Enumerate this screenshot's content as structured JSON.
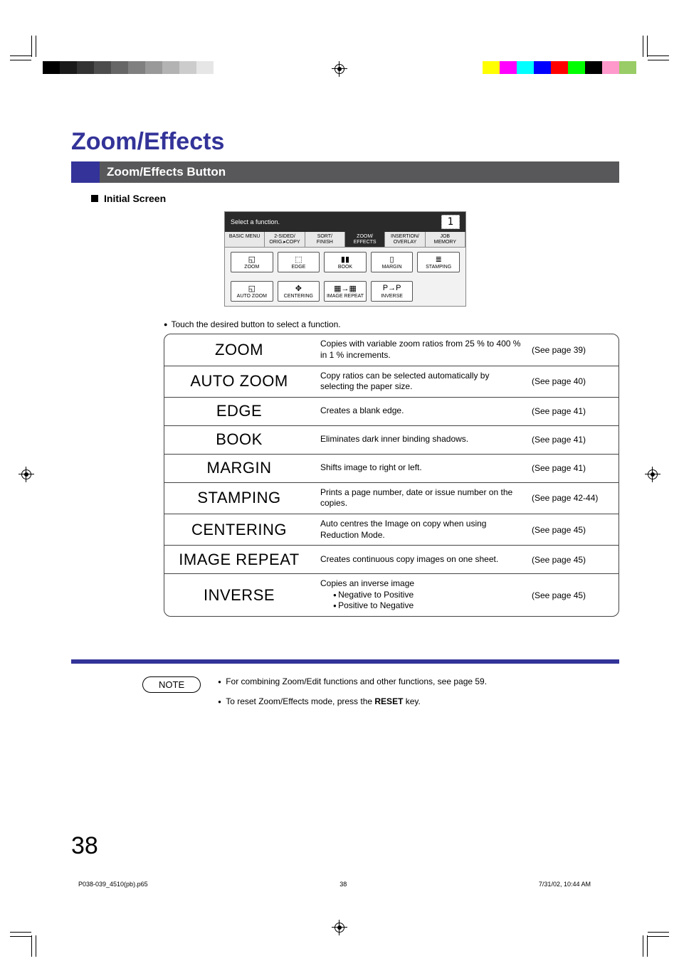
{
  "print_marks": {
    "grayscale_bar": [
      "#000000",
      "#1a1a1a",
      "#333333",
      "#4d4d4d",
      "#666666",
      "#808080",
      "#999999",
      "#b3b3b3",
      "#cccccc",
      "#e6e6e6",
      "#ffffff"
    ],
    "color_bar": [
      "#ffff00",
      "#ff00ff",
      "#00ffff",
      "#0000ff",
      "#ff0000",
      "#00ff00",
      "#000000",
      "#ff99cc",
      "#99cc66"
    ]
  },
  "title": "Zoom/Effects",
  "subtitle": "Zoom/Effects Button",
  "section_label": "Initial Screen",
  "touchscreen": {
    "prompt": "Select a function.",
    "count": "1",
    "tabs": [
      "BASIC MENU",
      "2-SIDED/\nORIG.▸COPY",
      "SORT/\nFINISH",
      "ZOOM/\nEFFECTS",
      "INSERTION/\nOVERLAY",
      "JOB\nMEMORY"
    ],
    "active_tab_index": 3,
    "row1": [
      {
        "icon": "◱",
        "label": "ZOOM"
      },
      {
        "icon": "⬚",
        "label": "EDGE"
      },
      {
        "icon": "▮▮",
        "label": "BOOK"
      },
      {
        "icon": "▯",
        "label": "MARGIN"
      },
      {
        "icon": "≣",
        "label": "STAMPING"
      }
    ],
    "row2": [
      {
        "icon": "◱",
        "label": "AUTO ZOOM"
      },
      {
        "icon": "✥",
        "label": "CENTERING"
      },
      {
        "icon": "▦→▦",
        "label": "IMAGE REPEAT"
      },
      {
        "icon": "P→P",
        "label": "INVERSE"
      },
      {
        "icon": "",
        "label": ""
      }
    ]
  },
  "touch_note": "Touch the desired button to select a function.",
  "features": [
    {
      "name": "ZOOM",
      "desc": "Copies with variable zoom ratios from 25 % to 400 % in 1 % increments.",
      "ref": "(See page 39)"
    },
    {
      "name": "AUTO ZOOM",
      "desc": "Copy ratios can be selected automatically by selecting the paper size.",
      "ref": "(See page 40)"
    },
    {
      "name": "EDGE",
      "desc": "Creates a blank edge.",
      "ref": "(See page 41)"
    },
    {
      "name": "BOOK",
      "desc": "Eliminates dark inner binding shadows.",
      "ref": "(See page 41)"
    },
    {
      "name": "MARGIN",
      "desc": "Shifts image to right or left.",
      "ref": "(See page 41)"
    },
    {
      "name": "STAMPING",
      "desc": "Prints a page number, date or issue number on the copies.",
      "ref": "(See page 42-44)"
    },
    {
      "name": "CENTERING",
      "desc": "Auto centres the Image on copy when using Reduction Mode.",
      "ref": "(See page 45)"
    },
    {
      "name": "IMAGE REPEAT",
      "desc": "Creates continuous copy images on one sheet.",
      "ref": "(See page 45)"
    },
    {
      "name": "INVERSE",
      "desc": "Copies an inverse image",
      "sub": [
        "Negative to Positive",
        "Positive to Negative"
      ],
      "ref": "(See page 45)"
    }
  ],
  "note_label": "NOTE",
  "notes": [
    "For combining Zoom/Edit functions and other functions, see page 59.",
    "To reset Zoom/Effects mode, press the RESET key."
  ],
  "page_number": "38",
  "footer": {
    "file": "P038-039_4510(pb).p65",
    "page": "38",
    "timestamp": "7/31/02, 10:44 AM"
  },
  "colors": {
    "accent": "#333399",
    "bar_gray": "#58585a"
  }
}
